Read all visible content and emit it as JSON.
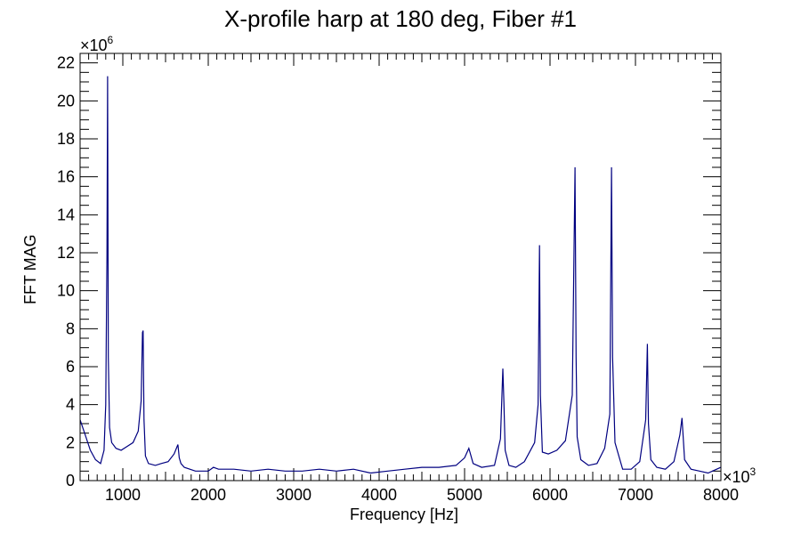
{
  "chart_data": {
    "type": "line",
    "title": "X-profile harp at 180 deg, Fiber #1",
    "xlabel": "Frequency [Hz]",
    "ylabel": "FFT MAG",
    "x_multiplier": "×10",
    "x_multiplier_exp": "3",
    "y_multiplier": "×10",
    "y_multiplier_exp": "6",
    "xlim": [
      500,
      8000
    ],
    "ylim": [
      0,
      22.5
    ],
    "x_ticks": [
      1000,
      2000,
      3000,
      4000,
      5000,
      6000,
      7000,
      8000
    ],
    "y_ticks": [
      0,
      2,
      4,
      6,
      8,
      10,
      12,
      14,
      16,
      18,
      20,
      22
    ],
    "grid": false,
    "line_color": "#000080",
    "series": [
      {
        "x": [
          500,
          560,
          620,
          680,
          740,
          780,
          800,
          815,
          822,
          830,
          845,
          870,
          920,
          980,
          1050,
          1120,
          1180,
          1215,
          1230,
          1238,
          1248,
          1265,
          1300,
          1380,
          1450,
          1530,
          1600,
          1645,
          1660,
          1680,
          1720,
          1850,
          2000,
          2060,
          2120,
          2300,
          2500,
          2700,
          2900,
          3100,
          3300,
          3500,
          3700,
          3900,
          4100,
          4300,
          4500,
          4700,
          4900,
          5000,
          5050,
          5100,
          5200,
          5350,
          5420,
          5448,
          5460,
          5475,
          5520,
          5600,
          5700,
          5820,
          5860,
          5877,
          5888,
          5910,
          5980,
          6080,
          6180,
          6260,
          6293,
          6305,
          6318,
          6360,
          6450,
          6550,
          6640,
          6700,
          6720,
          6732,
          6760,
          6850,
          6950,
          7050,
          7120,
          7140,
          7152,
          7180,
          7250,
          7350,
          7450,
          7520,
          7545,
          7575,
          7650,
          7750,
          7850,
          7950,
          8000
        ],
        "values": [
          3.2,
          2.4,
          1.6,
          1.1,
          0.9,
          1.6,
          4.0,
          12.0,
          21.3,
          6.5,
          2.8,
          2.0,
          1.7,
          1.6,
          1.8,
          2.0,
          2.6,
          4.2,
          7.8,
          7.9,
          3.2,
          1.3,
          0.9,
          0.8,
          0.9,
          1.0,
          1.4,
          1.9,
          1.2,
          0.9,
          0.7,
          0.5,
          0.5,
          0.7,
          0.6,
          0.6,
          0.5,
          0.6,
          0.5,
          0.5,
          0.6,
          0.5,
          0.6,
          0.4,
          0.5,
          0.6,
          0.7,
          0.7,
          0.8,
          1.2,
          1.7,
          0.9,
          0.7,
          0.8,
          2.2,
          5.9,
          4.1,
          1.6,
          0.8,
          0.7,
          1.0,
          2.0,
          4.0,
          12.4,
          4.5,
          1.5,
          1.4,
          1.6,
          2.1,
          4.5,
          16.5,
          6.5,
          2.3,
          1.1,
          0.8,
          0.9,
          1.7,
          3.5,
          16.5,
          6.5,
          2.0,
          0.6,
          0.6,
          1.0,
          3.2,
          7.2,
          3.0,
          1.1,
          0.7,
          0.6,
          1.0,
          2.4,
          3.3,
          1.1,
          0.6,
          0.5,
          0.4,
          0.6,
          0.7
        ]
      }
    ]
  }
}
